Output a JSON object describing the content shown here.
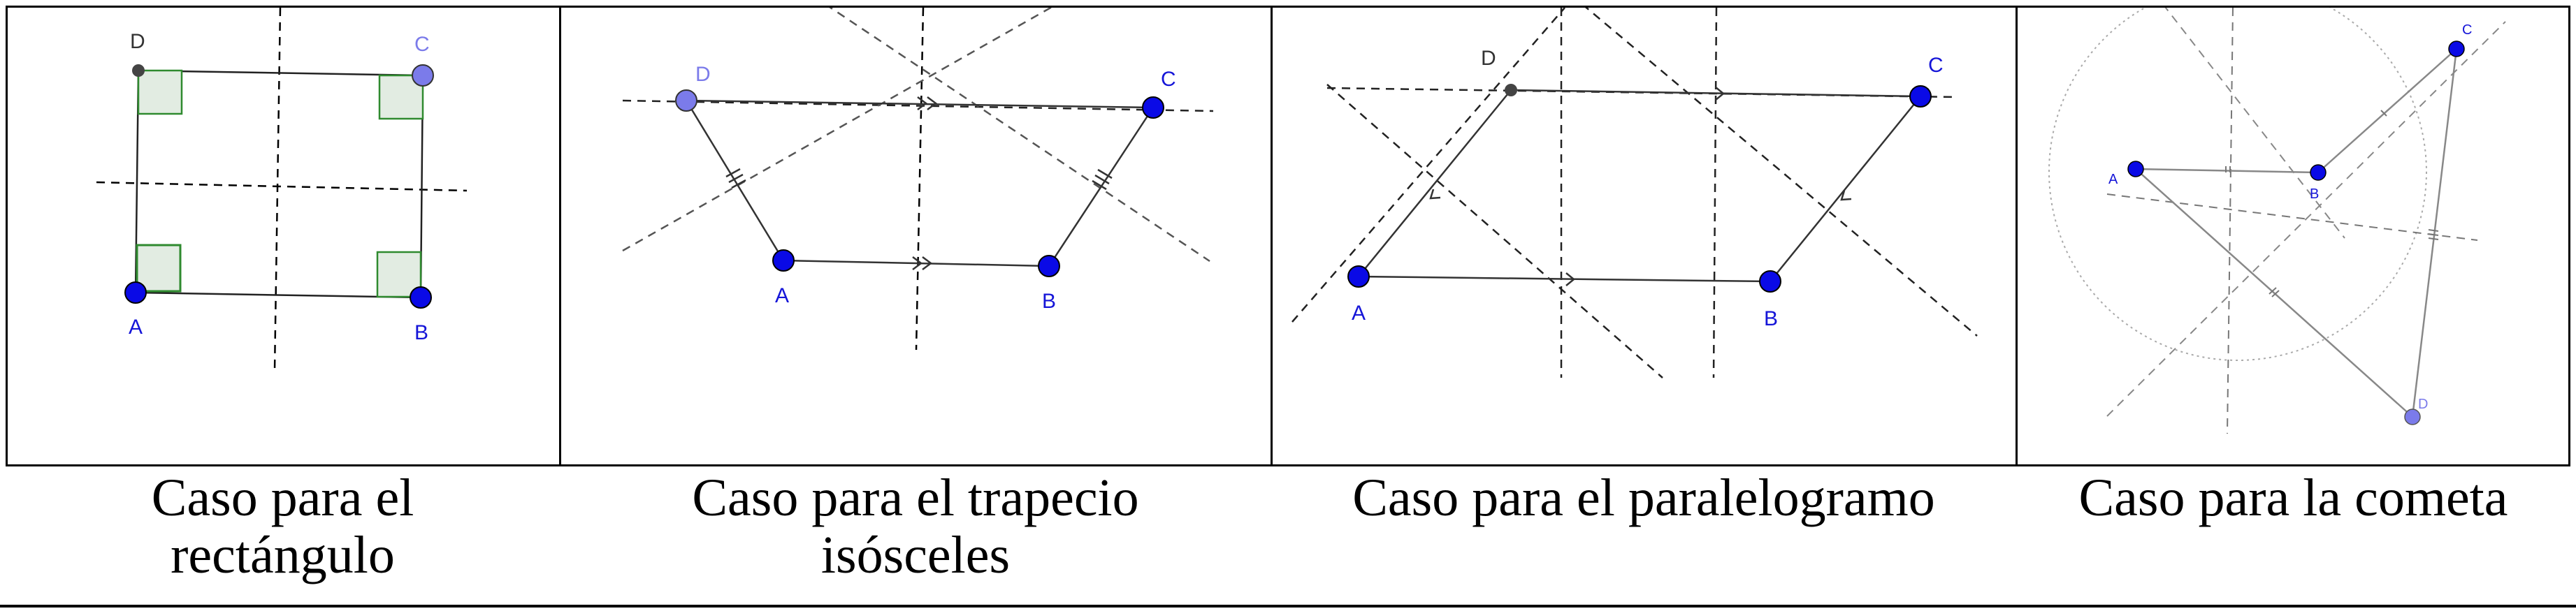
{
  "figures": [
    {
      "caption_line1": "Caso para el",
      "caption_line2": "rectángulo",
      "vertices": {
        "A": "A",
        "B": "B",
        "C": "C",
        "D": "D"
      }
    },
    {
      "caption_line1": "Caso para el trapecio",
      "caption_line2": "isósceles",
      "vertices": {
        "A": "A",
        "B": "B",
        "C": "C",
        "D": "D"
      }
    },
    {
      "caption_line1": "Caso para el paralelogramo",
      "caption_line2": "",
      "vertices": {
        "A": "A",
        "B": "B",
        "C": "C",
        "D": "D"
      }
    },
    {
      "caption_line1": "Caso para la cometa",
      "caption_line2": "",
      "vertices": {
        "A": "A",
        "B": "B",
        "C": "C",
        "D": "D"
      }
    }
  ],
  "colors": {
    "point_blue": "#0a0ae6",
    "point_light": "#7b7bea",
    "label_blue": "#1515d8",
    "right_angle_fill": "#e2ece2",
    "right_angle_stroke": "#2f8a2f"
  }
}
